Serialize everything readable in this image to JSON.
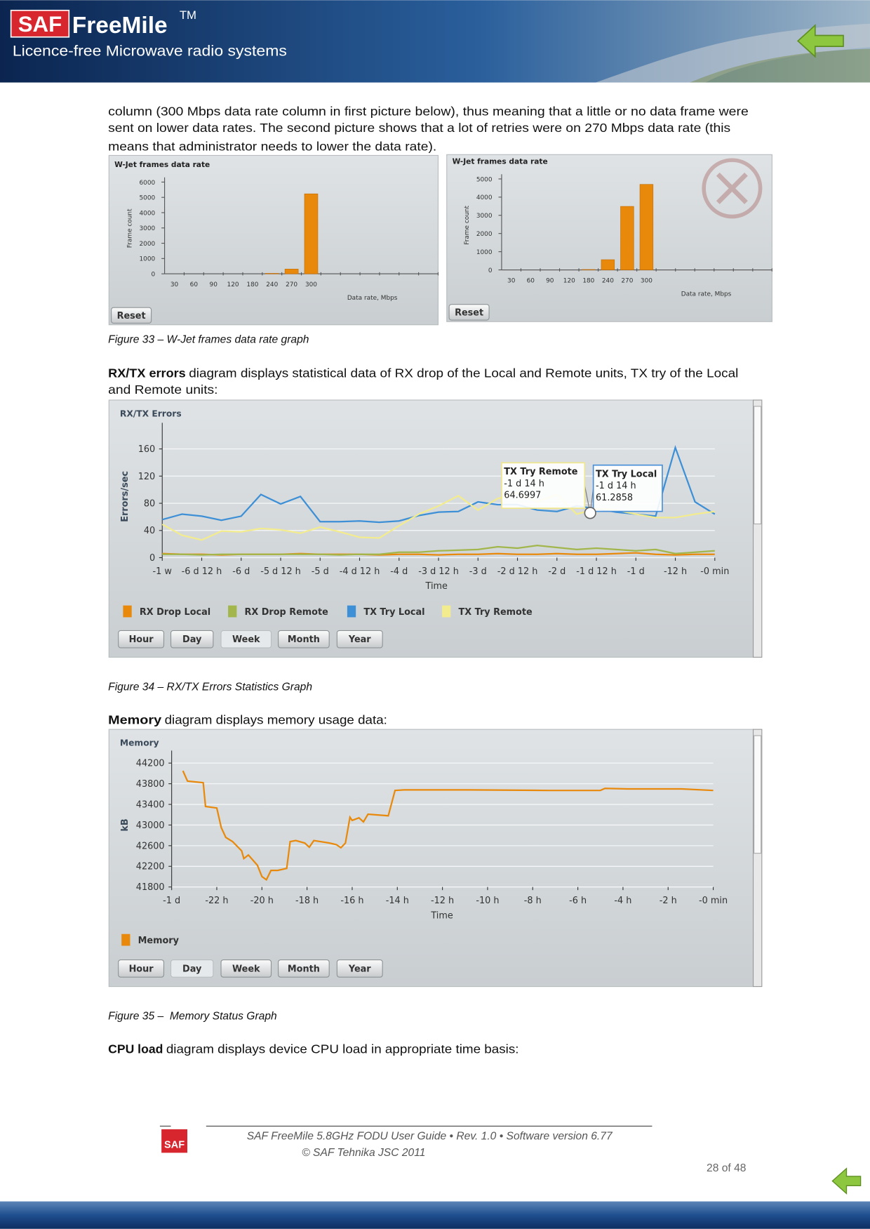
{
  "header": {
    "brand": "SAF",
    "product": "FreeMile",
    "trademark": "TM",
    "tagline": "Licence-free Microwave radio systems"
  },
  "intro": [
    "column (300 Mbps data rate column in first picture below), thus meaning that a little or no data frame were",
    "sent on lower data rates. The second picture shows that a lot of retries were on 270 Mbps data rate (this",
    "means that administrator needs to lower the data rate)."
  ],
  "figures": [
    {
      "caption": "Figure 33 – W-Jet frames data rate graph"
    },
    {
      "caption": "Figure 34 – RX/TX Errors Statistics Graph"
    },
    {
      "caption": "Figure 35 –  Memory Status Graph"
    }
  ],
  "sections": [
    {
      "term": "RX/TX errors",
      "text": [
        "diagram displays statistical data of RX drop of the Local and Remote units, TX try of the Local",
        "and Remote units:"
      ]
    },
    {
      "term": "Memory",
      "text": [
        "diagram displays memory usage data:"
      ]
    },
    {
      "term": "CPU load",
      "text": [
        "diagram displays device CPU load in appropriate time basis:"
      ]
    }
  ],
  "chart_data": [
    {
      "type": "bar",
      "title": "W-Jet frames data rate",
      "categories": [
        "30",
        "60",
        "90",
        "120",
        "180",
        "240",
        "270",
        "300",
        null,
        null,
        null,
        null,
        null,
        null
      ],
      "values": [
        0,
        0,
        0,
        0,
        0,
        30,
        310,
        5230,
        0,
        0,
        0,
        0,
        0,
        0
      ],
      "color": "#e8890c",
      "ylim": [
        0,
        6000
      ],
      "yticks": [
        0,
        1000,
        2000,
        3000,
        4000,
        5000,
        6000
      ],
      "xlabel": "Data rate, Mbps",
      "ylabel": "Frame count",
      "button": "Reset",
      "grid": false
    },
    {
      "type": "bar",
      "title": "W-Jet frames data rate",
      "categories": [
        "30",
        "60",
        "90",
        "120",
        "180",
        "240",
        "270",
        "300",
        null,
        null,
        null,
        null,
        null,
        null
      ],
      "values": [
        0,
        0,
        0,
        0,
        20,
        560,
        3490,
        4700,
        0,
        0,
        0,
        0,
        0,
        0
      ],
      "color": "#e8890c",
      "ylim": [
        0,
        5000
      ],
      "yticks": [
        0,
        1000,
        2000,
        3000,
        4000,
        5000
      ],
      "xlabel": "Data rate, Mbps",
      "ylabel": "Frame count",
      "button": "Reset",
      "grid": false
    },
    {
      "type": "line",
      "title": "RX/TX Errors",
      "xlabel": "Time",
      "ylabel": "Errors/sec",
      "x": [
        -168,
        -162,
        -156,
        -150,
        -144,
        -138,
        -132,
        -126,
        -120,
        -114,
        -108,
        -102,
        -96,
        -90,
        -84,
        -78,
        -72,
        -66,
        -60,
        -54,
        -48,
        -42,
        -36,
        -30,
        -24,
        -18,
        -12,
        -6,
        0
      ],
      "series": [
        {
          "name": "RX Drop Local",
          "color": "#e8890c",
          "values": [
            6,
            5,
            5,
            4,
            5,
            5,
            5,
            6,
            5,
            5,
            5,
            4,
            5,
            5,
            4,
            5,
            5,
            6,
            5,
            5,
            6,
            5,
            5,
            6,
            7,
            5,
            4,
            5,
            5
          ]
        },
        {
          "name": "RX Drop Remote",
          "color": "#a2b64c",
          "values": [
            5,
            5,
            4,
            5,
            5,
            5,
            5,
            5,
            5,
            4,
            5,
            5,
            8,
            8,
            10,
            11,
            12,
            16,
            14,
            18,
            15,
            12,
            14,
            12,
            10,
            12,
            6,
            8,
            10
          ]
        },
        {
          "name": "TX Try Local",
          "color": "#3d8fd6",
          "values": [
            56,
            64,
            61,
            55,
            61,
            93,
            79,
            90,
            53,
            53,
            54,
            52,
            54,
            62,
            67,
            68,
            82,
            78,
            78,
            70,
            68,
            76,
            72,
            67,
            64,
            61,
            162,
            82,
            64
          ]
        },
        {
          "name": "TX Try Remote",
          "color": "#f3ec8e",
          "values": [
            49,
            33,
            26,
            39,
            38,
            43,
            41,
            36,
            45,
            38,
            30,
            29,
            47,
            64,
            76,
            91,
            70,
            87,
            95,
            82,
            93,
            64,
            72,
            70,
            64,
            59,
            59,
            64,
            68
          ]
        }
      ],
      "xlim": [
        -168,
        0
      ],
      "xticks": [
        {
          "value": -168,
          "label": "-1 w"
        },
        {
          "value": -156,
          "label": "-6 d 12 h"
        },
        {
          "value": -144,
          "label": "-6 d"
        },
        {
          "value": -132,
          "label": "-5 d 12 h"
        },
        {
          "value": -120,
          "label": "-5 d"
        },
        {
          "value": -108,
          "label": "-4 d 12 h"
        },
        {
          "value": -96,
          "label": "-4 d"
        },
        {
          "value": -84,
          "label": "-3 d 12 h"
        },
        {
          "value": -72,
          "label": "-3 d"
        },
        {
          "value": -60,
          "label": "-2 d 12 h"
        },
        {
          "value": -48,
          "label": "-2 d"
        },
        {
          "value": -36,
          "label": "-1 d 12 h"
        },
        {
          "value": -24,
          "label": "-1 d"
        },
        {
          "value": -12,
          "label": "-12 h"
        },
        {
          "value": 0,
          "label": "-0 min"
        }
      ],
      "ylim": [
        0,
        180
      ],
      "yticks": [
        0,
        40,
        80,
        120,
        160
      ],
      "grid": true,
      "tooltips": [
        {
          "title": "TX Try Remote",
          "time": "-1 d 14 h",
          "value": 64.6997
        },
        {
          "title": "TX Try Local",
          "time": "-1 d 14 h",
          "value": 61.2858
        }
      ],
      "buttons": [
        "Hour",
        "Day",
        "Week",
        "Month",
        "Year"
      ],
      "selected": "Week"
    },
    {
      "type": "line",
      "title": "Memory",
      "xlabel": "Time",
      "ylabel": "kB",
      "x": [
        -23.5,
        -23.3,
        -22.6,
        -22.5,
        -22.0,
        -21.8,
        -21.6,
        -21.3,
        -20.9,
        -20.8,
        -20.6,
        -20.2,
        -20.0,
        -19.8,
        -19.6,
        -19.3,
        -18.9,
        -18.75,
        -18.5,
        -18.1,
        -17.9,
        -17.7,
        -17.0,
        -16.7,
        -16.5,
        -16.3,
        -16.1,
        -16.0,
        -15.7,
        -15.5,
        -15.3,
        -14.4,
        -14.1,
        -13.7,
        -10.8,
        -7.3,
        -5.0,
        -4.8,
        -3.8,
        -1.4,
        0
      ],
      "series": [
        {
          "name": "Memory",
          "color": "#e8890c",
          "values": [
            44050,
            43850,
            43820,
            43360,
            43330,
            42950,
            42760,
            42680,
            42500,
            42350,
            42420,
            42220,
            42000,
            41940,
            42120,
            42120,
            42160,
            42680,
            42700,
            42650,
            42570,
            42700,
            42650,
            42620,
            42560,
            42650,
            43150,
            43090,
            43140,
            43060,
            43210,
            43180,
            43670,
            43680,
            43680,
            43670,
            43670,
            43710,
            43700,
            43700,
            43670
          ]
        }
      ],
      "xlim": [
        -24,
        0
      ],
      "xticks": [
        {
          "value": -24,
          "label": "-1 d"
        },
        {
          "value": -22,
          "label": "-22 h"
        },
        {
          "value": -20,
          "label": "-20 h"
        },
        {
          "value": -18,
          "label": "-18 h"
        },
        {
          "value": -16,
          "label": "-16 h"
        },
        {
          "value": -14,
          "label": "-14 h"
        },
        {
          "value": -12,
          "label": "-12 h"
        },
        {
          "value": -10,
          "label": "-10 h"
        },
        {
          "value": -8,
          "label": "-8 h"
        },
        {
          "value": -6,
          "label": "-6 h"
        },
        {
          "value": -4,
          "label": "-4 h"
        },
        {
          "value": -2,
          "label": "-2 h"
        },
        {
          "value": 0,
          "label": "-0 min"
        }
      ],
      "ylim": [
        41800,
        44200
      ],
      "yticks": [
        41800,
        42200,
        42600,
        43000,
        43400,
        43800,
        44200
      ],
      "grid": true,
      "buttons": [
        "Hour",
        "Day",
        "Week",
        "Month",
        "Year"
      ],
      "selected": "Day"
    }
  ],
  "footer": {
    "logo": "SAF",
    "line1": "SAF FreeMile 5.8GHz FODU User Guide • Rev. 1.0 • Software version 6.77",
    "line2": "© SAF Tehnika JSC 2011",
    "page": "28 of 48"
  }
}
